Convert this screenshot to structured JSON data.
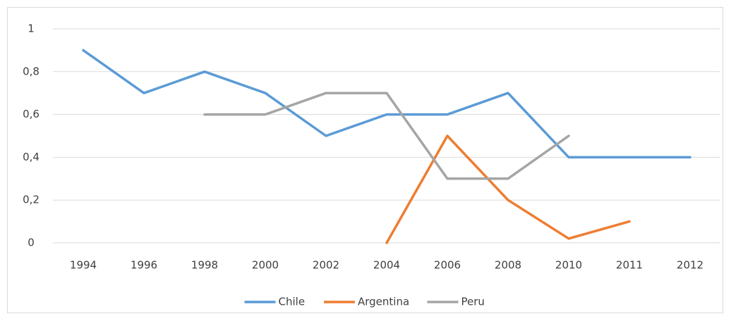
{
  "chart_data": {
    "type": "line",
    "categories": [
      "1994",
      "1996",
      "1998",
      "2000",
      "2002",
      "2004",
      "2006",
      "2008",
      "2010",
      "2011",
      "2012"
    ],
    "series": [
      {
        "name": "Chile",
        "color": "#5b9bd5",
        "values": [
          0.9,
          0.7,
          0.8,
          0.7,
          0.5,
          0.6,
          0.6,
          0.7,
          0.4,
          0.4,
          0.4
        ]
      },
      {
        "name": "Argentina",
        "color": "#ed7d31",
        "values": [
          null,
          null,
          null,
          null,
          null,
          0,
          0.5,
          0.2,
          0.02,
          0.1,
          null
        ]
      },
      {
        "name": "Peru",
        "color": "#a5a5a5",
        "values": [
          null,
          null,
          0.6,
          0.6,
          0.7,
          0.7,
          0.3,
          0.3,
          0.5,
          null,
          null
        ]
      }
    ],
    "ylim": [
      0,
      1
    ],
    "yticks": [
      0,
      {
        "value": 0.2,
        "label": "0,2"
      },
      {
        "value": 0.4,
        "label": "0,4"
      },
      {
        "value": 0.6,
        "label": "0,6"
      },
      {
        "value": 0.8,
        "label": "0,8"
      },
      1
    ],
    "grid": true,
    "legend": "bottom"
  }
}
